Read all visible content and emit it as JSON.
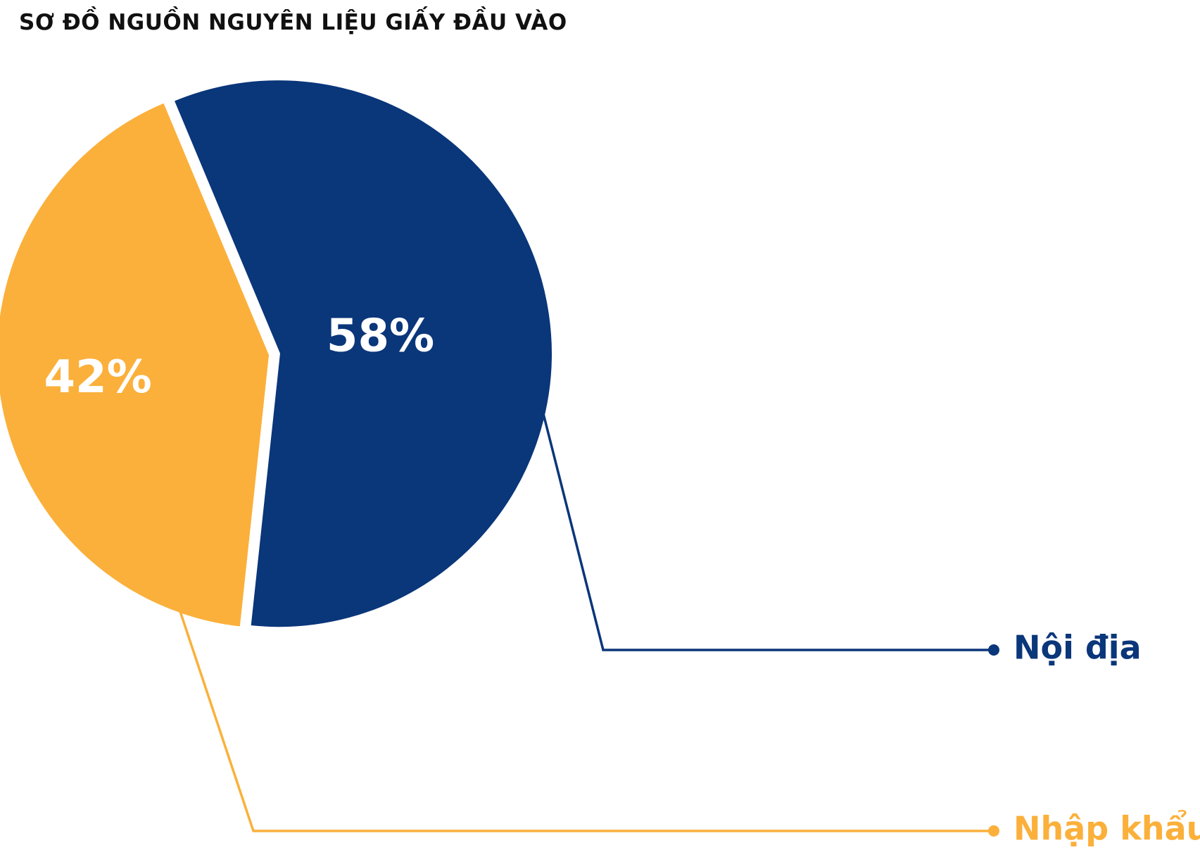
{
  "chart_data": {
    "type": "pie",
    "title": "SƠ ĐỒ NGUỒN NGUYÊN LIỆU GIẤY ĐẦU VÀO",
    "slices": [
      {
        "name": "Nội địa",
        "value": 58,
        "label": "58%",
        "color": "#0a367a"
      },
      {
        "name": "Nhập khẩu",
        "value": 42,
        "label": "42%",
        "color": "#fbb03b"
      }
    ],
    "legend_placement": "right"
  }
}
